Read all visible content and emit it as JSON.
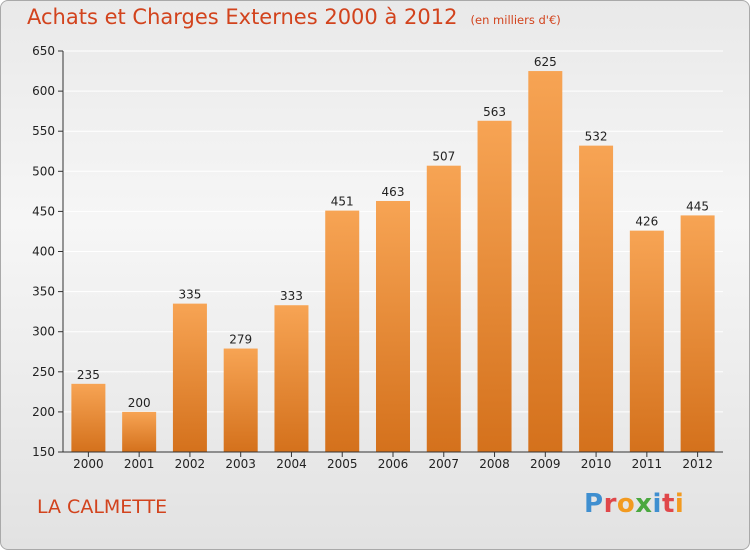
{
  "header": {
    "title": "Achats et Charges Externes 2000 à 2012",
    "unit": "(en milliers d'€)"
  },
  "footer": {
    "place": "LA CALMETTE",
    "brand": "Proxiti"
  },
  "colors": {
    "title": "#d2431d",
    "bar_top": "#f7a454",
    "bar_bottom": "#d4711c",
    "axis": "#333333",
    "grid": "#ffffff"
  },
  "chart_data": {
    "type": "bar",
    "categories": [
      "2000",
      "2001",
      "2002",
      "2003",
      "2004",
      "2005",
      "2006",
      "2007",
      "2008",
      "2009",
      "2010",
      "2011",
      "2012"
    ],
    "values": [
      235,
      200,
      335,
      279,
      333,
      451,
      463,
      507,
      563,
      625,
      532,
      426,
      445
    ],
    "ylim": [
      150,
      650
    ],
    "yticks": [
      150,
      200,
      250,
      300,
      350,
      400,
      450,
      500,
      550,
      600,
      650
    ],
    "title": "Achats et Charges Externes 2000 à 2012",
    "xlabel": "",
    "ylabel": "",
    "grid": true,
    "data_labels": true
  }
}
